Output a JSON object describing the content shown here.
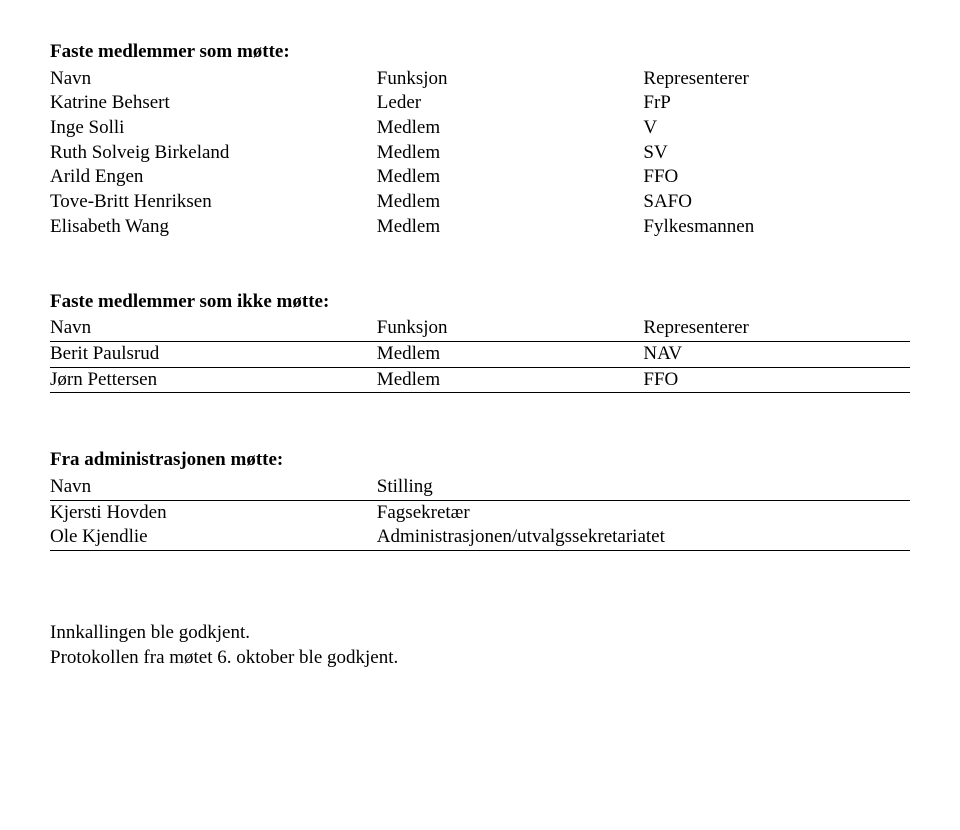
{
  "section1": {
    "title": "Faste medlemmer som møtte:",
    "headers": {
      "name": "Navn",
      "role": "Funksjon",
      "rep": "Representerer"
    },
    "rows": [
      {
        "name": "Katrine Behsert",
        "role": "Leder",
        "rep": "FrP"
      },
      {
        "name": "Inge Solli",
        "role": "Medlem",
        "rep": "V"
      },
      {
        "name": "Ruth Solveig Birkeland",
        "role": "Medlem",
        "rep": "SV"
      },
      {
        "name": "Arild Engen",
        "role": "Medlem",
        "rep": "FFO"
      },
      {
        "name": "Tove-Britt Henriksen",
        "role": "Medlem",
        "rep": "SAFO"
      },
      {
        "name": "Elisabeth Wang",
        "role": "Medlem",
        "rep": "Fylkesmannen"
      }
    ]
  },
  "section2": {
    "title": "Faste medlemmer som ikke møtte:",
    "headers": {
      "name": "Navn",
      "role": "Funksjon",
      "rep": "Representerer"
    },
    "rows": [
      {
        "name": "Berit Paulsrud",
        "role": "Medlem",
        "rep": "NAV"
      },
      {
        "name": "Jørn Pettersen",
        "role": "Medlem",
        "rep": "FFO"
      }
    ]
  },
  "section3": {
    "title": "Fra administrasjonen møtte:",
    "headers": {
      "name": "Navn",
      "position": "Stilling"
    },
    "rows": [
      {
        "name": "Kjersti Hovden",
        "position": "Fagsekretær"
      },
      {
        "name": "Ole Kjendlie",
        "position": "Administrasjonen/utvalgssekretariatet"
      }
    ]
  },
  "footer": {
    "line1": "Innkallingen ble godkjent.",
    "line2": "Protokollen fra møtet 6. oktober ble godkjent."
  },
  "style": {
    "font_family": "Times New Roman",
    "font_size_pt": 14,
    "text_color": "#000000",
    "background_color": "#ffffff",
    "rule_color": "#000000"
  }
}
